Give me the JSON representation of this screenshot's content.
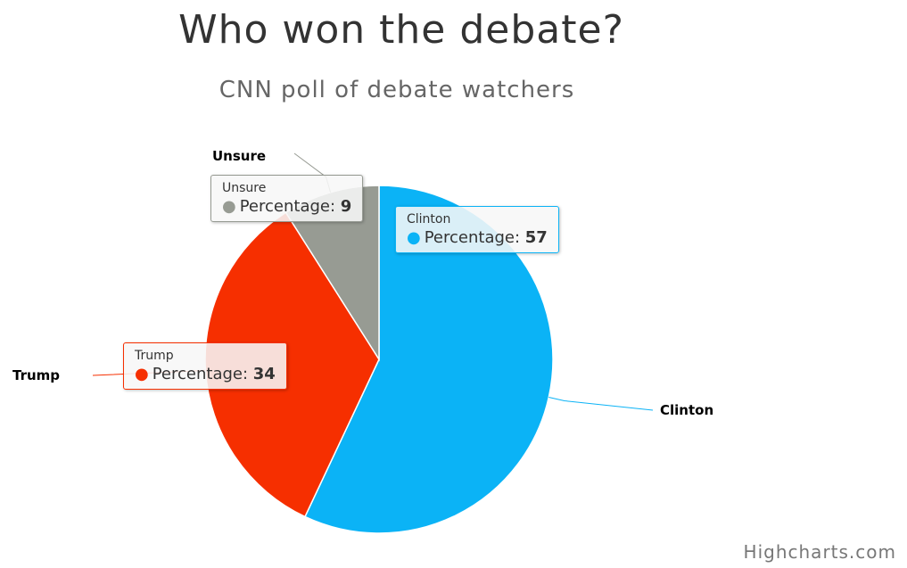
{
  "chart_data": {
    "type": "pie",
    "title": "Who won the debate?",
    "subtitle": "CNN poll of debate watchers",
    "series_name": "Percentage",
    "slices": [
      {
        "label": "Clinton",
        "value": 57,
        "color": "#0bb3f6"
      },
      {
        "label": "Trump",
        "value": 34,
        "color": "#f62f00"
      },
      {
        "label": "Unsure",
        "value": 9,
        "color": "#979b93"
      }
    ]
  },
  "credits": "Highcharts.com"
}
